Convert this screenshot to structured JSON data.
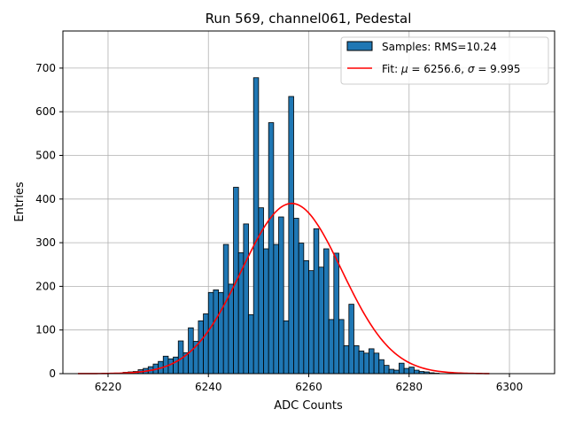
{
  "chart_data": {
    "type": "bar",
    "title": "Run 569, channel061, Pedestal",
    "xlabel": "ADC Counts",
    "ylabel": "Entries",
    "xlim": [
      6211,
      6309
    ],
    "ylim": [
      0,
      785
    ],
    "xticks": [
      6220,
      6240,
      6260,
      6280,
      6300
    ],
    "yticks": [
      0,
      100,
      200,
      300,
      400,
      500,
      600,
      700
    ],
    "grid": true,
    "legend_position": "top-right",
    "histogram": {
      "name": "Samples: RMS=10.24",
      "bin_width": 1,
      "bin_start": 6222,
      "counts": [
        1,
        3,
        4,
        5,
        9,
        12,
        16,
        22,
        28,
        40,
        34,
        38,
        75,
        48,
        105,
        74,
        121,
        137,
        186,
        192,
        186,
        296,
        205,
        427,
        277,
        343,
        135,
        678,
        380,
        286,
        575,
        296,
        359,
        121,
        635,
        356,
        299,
        259,
        236,
        332,
        244,
        286,
        124,
        276,
        124,
        64,
        159,
        64,
        52,
        47,
        57,
        47,
        32,
        19,
        10,
        8,
        24,
        12,
        15,
        8,
        5,
        4,
        2,
        1
      ]
    },
    "fit": {
      "name_prefix": "Fit: ",
      "mu_symbol": "μ",
      "mu_text": " = 6256.6, ",
      "sigma_symbol": "σ",
      "sigma_text": " = 9.995",
      "mu": 6256.6,
      "sigma": 9.995,
      "amplitude": 390,
      "x_range": [
        6214,
        6296
      ]
    },
    "colors": {
      "bar_fill": "#1f77b4",
      "bar_edge": "#000000",
      "fit_line": "#ff0000",
      "grid": "#b0b0b0"
    }
  }
}
